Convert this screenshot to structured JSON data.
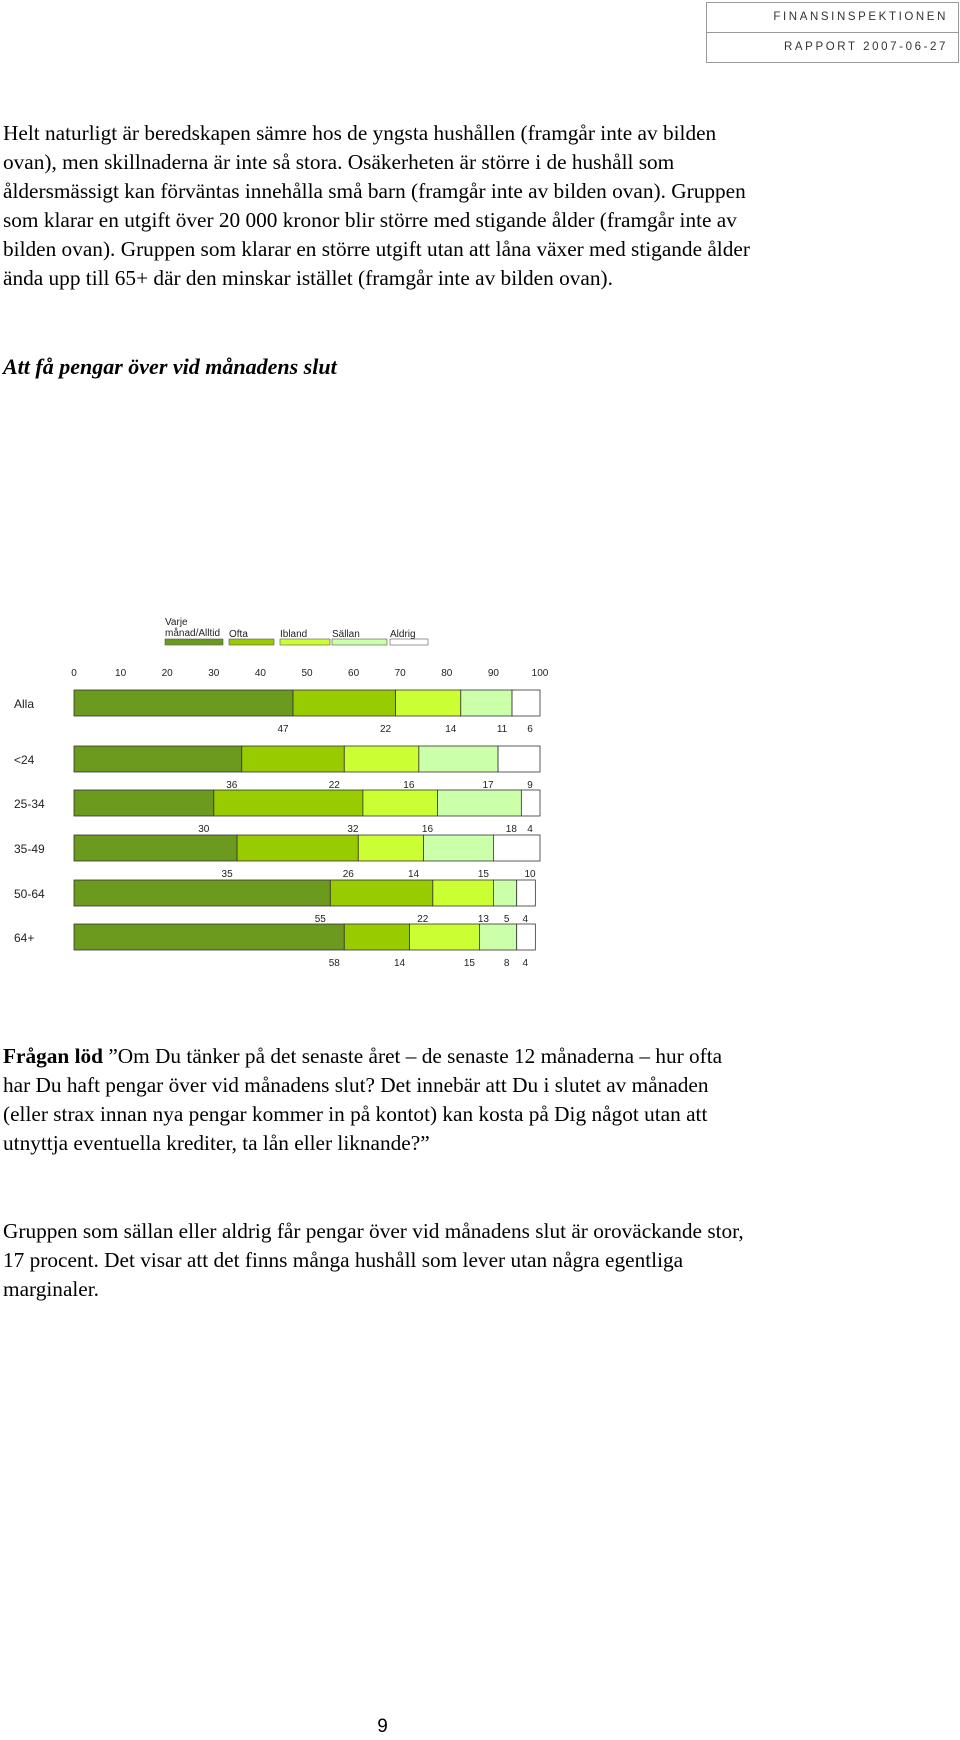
{
  "header": {
    "org": "FINANSINSPEKTIONEN",
    "report": "RAPPORT 2007-06-27"
  },
  "body": {
    "para1": "Helt naturligt är beredskapen sämre hos de yngsta hushållen (framgår inte av bilden ovan), men skillnaderna är inte så stora. Osäkerheten är större i de hushåll som åldersmässigt kan förväntas innehålla små barn (framgår inte av bilden ovan). Gruppen som klarar en utgift över 20 000 kronor blir större med stigande ålder (framgår inte av bilden ovan). Gruppen som klarar en större utgift utan att låna växer med stigande ålder ända upp till 65+ där den minskar istället (framgår inte av bilden ovan).",
    "section_heading": "Att få pengar över vid månadens slut",
    "question_label": "Frågan löd",
    "question_text": " ”Om Du tänker på det senaste året – de senaste 12 månaderna – hur ofta har Du haft pengar över vid månadens slut? Det innebär att Du i slutet av månaden (eller strax innan nya pengar kommer in på kontot) kan kosta på Dig något utan att utnyttja eventuella krediter, ta lån eller liknande?”",
    "para3": "Gruppen som sällan eller aldrig får pengar över vid månadens slut är oroväckande stor, 17 procent. Det visar att det finns många hushåll som lever utan några egentliga marginaler."
  },
  "chart_data": {
    "type": "bar",
    "stacked": true,
    "orientation": "horizontal",
    "categories": [
      "Alla",
      "<24",
      "25-34",
      "35-49",
      "50-64",
      "64+"
    ],
    "series": [
      {
        "name": "Varje månad/Alltid",
        "color": "#6b9a1f",
        "values": [
          47,
          36,
          30,
          35,
          55,
          58
        ]
      },
      {
        "name": "Ofta",
        "color": "#99cc00",
        "values": [
          22,
          22,
          32,
          26,
          22,
          14
        ]
      },
      {
        "name": "Ibland",
        "color": "#ccff33",
        "values": [
          14,
          16,
          16,
          14,
          13,
          15
        ]
      },
      {
        "name": "Sällan",
        "color": "#ccffaa",
        "values": [
          11,
          17,
          18,
          15,
          5,
          8
        ]
      },
      {
        "name": "Aldrig",
        "color": "#ffffff",
        "values": [
          6,
          9,
          4,
          10,
          4,
          4
        ]
      }
    ],
    "x_ticks": [
      "0",
      "10",
      "20",
      "30",
      "40",
      "50",
      "60",
      "70",
      "80",
      "90",
      "100"
    ],
    "xlim": [
      0,
      100
    ],
    "legend_position": "top",
    "legend_labels": [
      [
        "Varje",
        "månad/Alltid"
      ],
      [
        "Ofta"
      ],
      [
        "Ibland"
      ],
      [
        "Sällan"
      ],
      [
        "Aldrig"
      ]
    ],
    "title": "",
    "xlabel": "",
    "ylabel": ""
  },
  "page_number": "9"
}
